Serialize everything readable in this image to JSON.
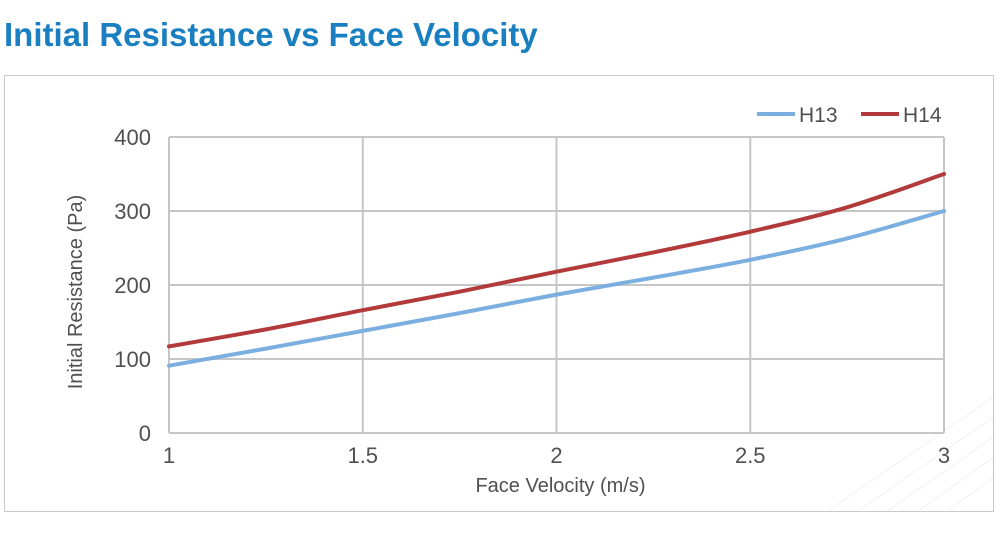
{
  "colors": {
    "title": "#1a7fc1",
    "h13": "#7aafe0",
    "h14": "#b23a3a",
    "grid": "#c6c6c6",
    "axis_text": "#505050"
  },
  "chart_data": {
    "type": "line",
    "title": "Initial Resistance vs Face Velocity",
    "xlabel": "Face Velocity (m/s)",
    "ylabel": "Initial Resistance (Pa)",
    "xlim": [
      1,
      3
    ],
    "ylim": [
      0,
      400
    ],
    "x_ticks": [
      1,
      1.5,
      2,
      2.5,
      3
    ],
    "y_ticks": [
      0,
      100,
      200,
      300,
      400
    ],
    "x_tick_labels": [
      "1",
      "1.5",
      "2",
      "2.5",
      "3"
    ],
    "y_tick_labels": [
      "0",
      "100",
      "200",
      "300",
      "400"
    ],
    "grid": true,
    "legend_position": "top-right",
    "series": [
      {
        "name": "H13",
        "color": "#7aafe0",
        "x": [
          1,
          1.25,
          1.5,
          1.75,
          2,
          2.25,
          2.5,
          2.75,
          3
        ],
        "y": [
          91,
          114,
          138,
          162,
          187,
          210,
          234,
          263,
          300
        ]
      },
      {
        "name": "H14",
        "color": "#b23a3a",
        "x": [
          1,
          1.25,
          1.5,
          1.75,
          2,
          2.25,
          2.5,
          2.75,
          3
        ],
        "y": [
          117,
          140,
          166,
          191,
          218,
          244,
          272,
          305,
          350
        ]
      }
    ]
  }
}
